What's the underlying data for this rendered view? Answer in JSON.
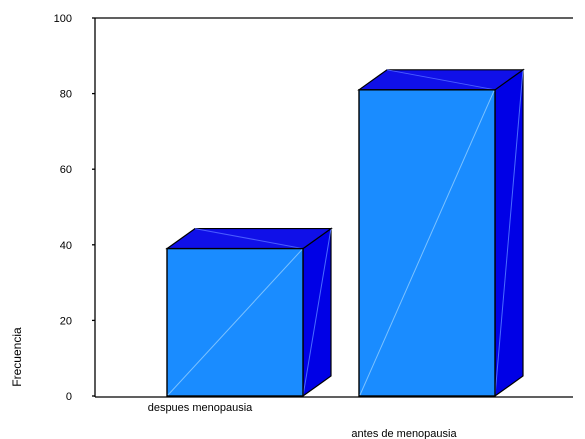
{
  "chart_data": {
    "type": "bar",
    "style": "3d",
    "categories": [
      "despues menopausia",
      "antes de menopausia"
    ],
    "values": [
      39,
      81
    ],
    "xlabel": "",
    "ylabel": "Frecuencia",
    "ylim": [
      0,
      100
    ],
    "yticks": [
      "0",
      "20",
      "40",
      "60",
      "80",
      "100"
    ],
    "grid": false,
    "legend": "none",
    "colors": {
      "front": "#1a8cff",
      "top": "#1010e8",
      "side": "#0000e6",
      "outline": "#000000"
    }
  }
}
